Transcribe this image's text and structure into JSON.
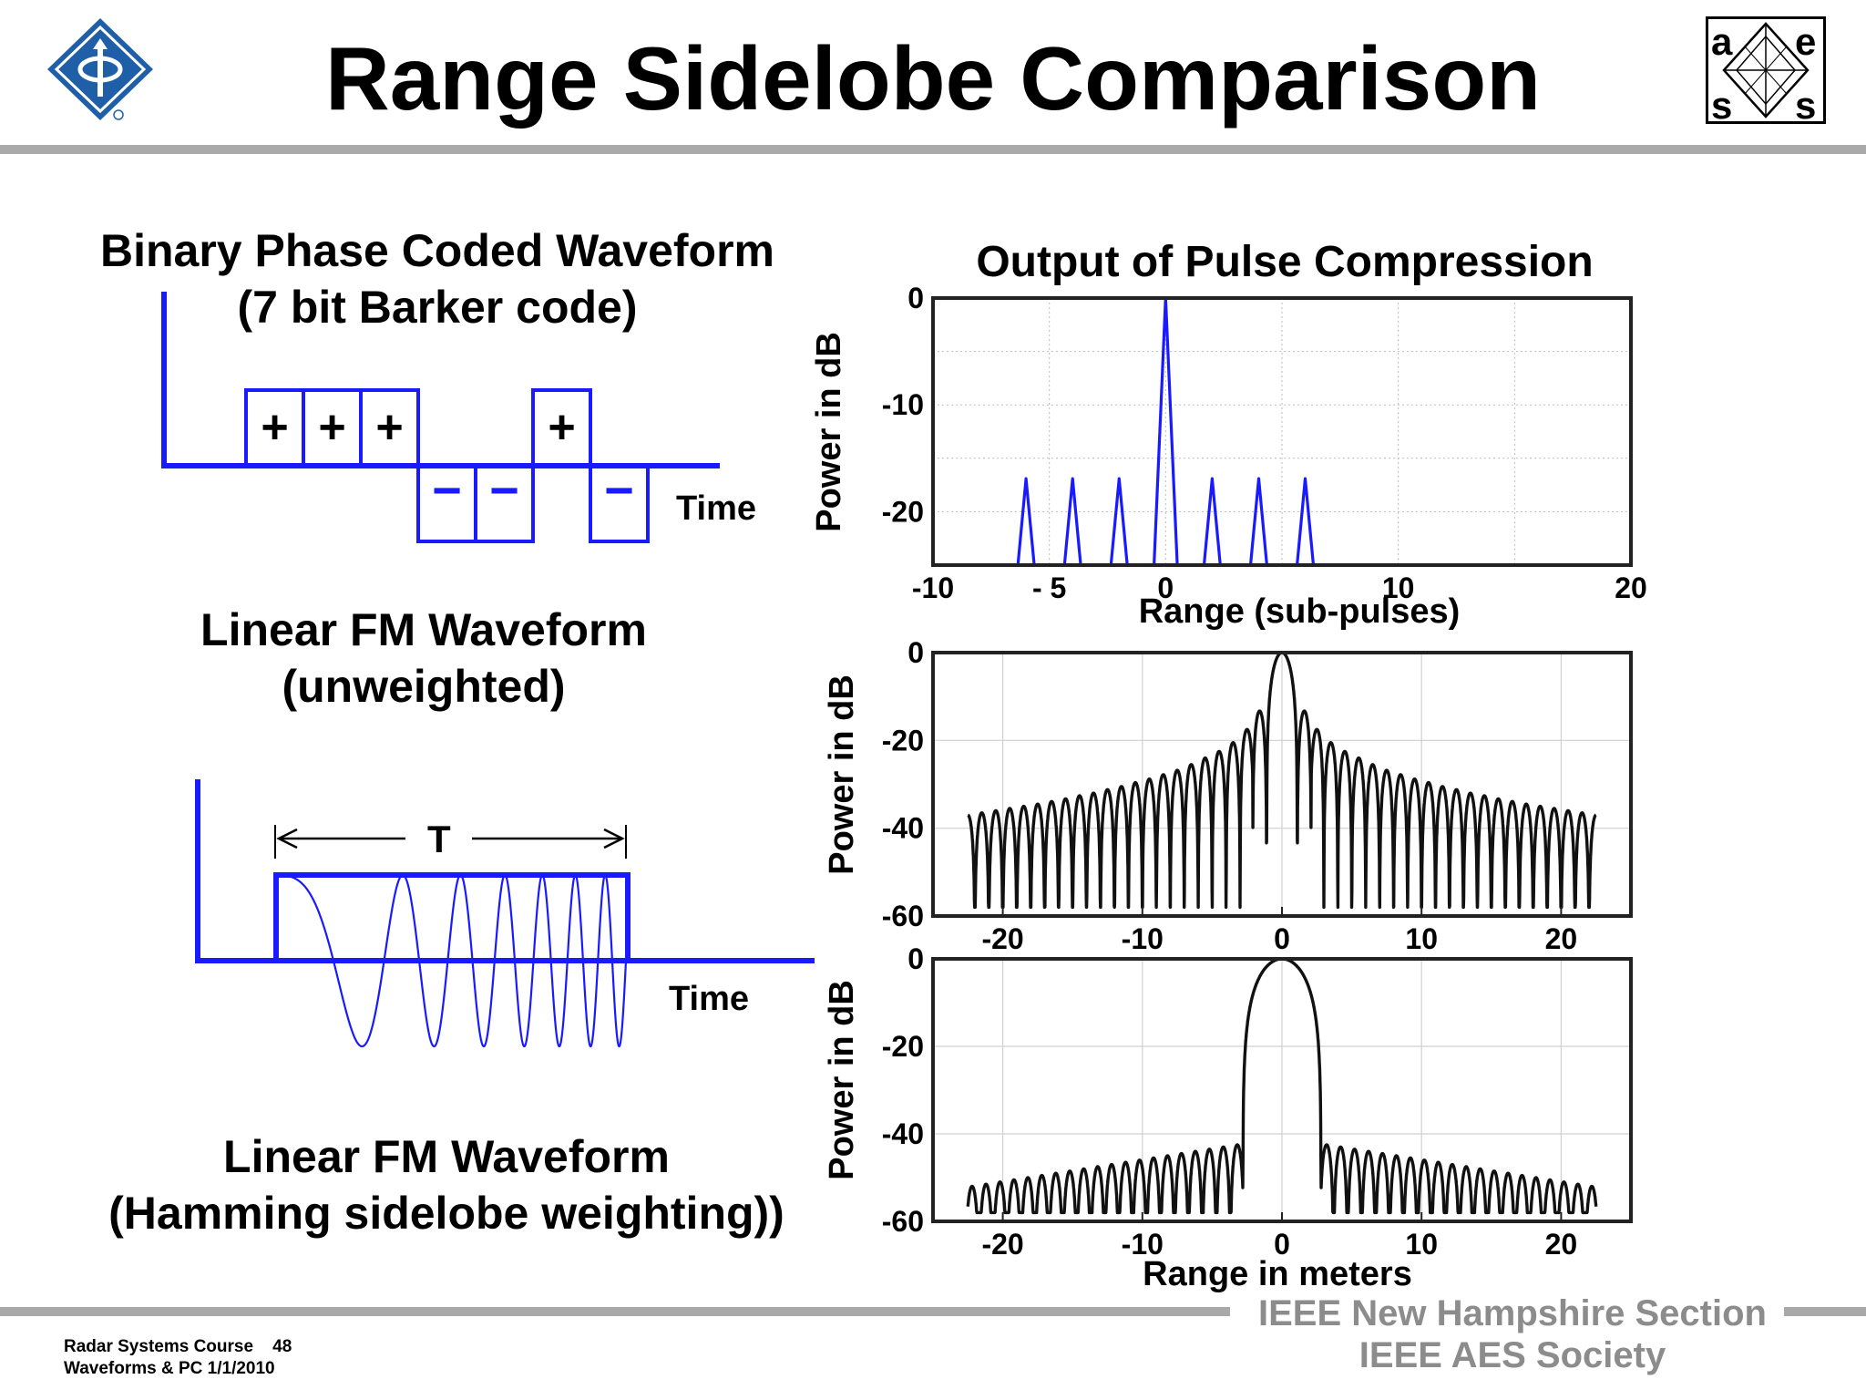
{
  "slide": {
    "title": "Range Sidelobe Comparison"
  },
  "left": {
    "barker": {
      "title_line1": "Binary Phase Coded Waveform",
      "title_line2": "(7 bit Barker  code)",
      "bits": [
        "+",
        "+",
        "+",
        "−",
        "−",
        "+",
        "−"
      ],
      "time_label": "Time"
    },
    "lfm_unweighted": {
      "title_line1": "Linear FM Waveform",
      "title_line2": "(unweighted)"
    },
    "lfm_diagram": {
      "duration_label": "T",
      "time_label": "Time"
    },
    "lfm_hamming": {
      "title_line1": "Linear FM Waveform",
      "title_line2": "(Hamming sidelobe weighting))"
    }
  },
  "right": {
    "title": "Output of Pulse Compression"
  },
  "footer": {
    "course": "Radar Systems Course",
    "page": "48",
    "subtitle": "Waveforms & PC  1/1/2010",
    "org_line1": "IEEE New Hampshire Section",
    "org_line2": "IEEE AES Society"
  },
  "colors": {
    "waveform_blue": "#1a1aff",
    "plot_black": "#111111",
    "rule_gray": "#a9a9a9",
    "footer_gray": "#8c8c8c",
    "logo_blue": "#1f5fa8"
  },
  "chart_data": [
    {
      "type": "line",
      "title": "Output of Pulse Compression",
      "xlabel": "Range (sub-pulses)",
      "ylabel": "Power in dB",
      "xlim": [
        -10,
        20
      ],
      "ylim": [
        -25,
        0
      ],
      "x_ticks": [
        "-10",
        "- 5",
        "0",
        "10",
        "20"
      ],
      "x_tick_values": [
        -10,
        -5,
        0,
        10,
        20
      ],
      "y_ticks": [
        "0",
        "-10",
        "-20"
      ],
      "y_tick_values": [
        0,
        -10,
        -20
      ],
      "grid": true,
      "series": [
        {
          "peaks": [
            {
              "x": -6,
              "y": -16.9
            },
            {
              "x": -4,
              "y": -16.9
            },
            {
              "x": -2,
              "y": -16.9
            },
            {
              "x": 0,
              "y": 0
            },
            {
              "x": 2,
              "y": -16.9
            },
            {
              "x": 4,
              "y": -16.9
            },
            {
              "x": 6,
              "y": -16.9
            }
          ]
        }
      ]
    },
    {
      "type": "line",
      "title": "",
      "xlabel": "",
      "ylabel": "Power in dB",
      "xlim": [
        -25,
        25
      ],
      "ylim": [
        -60,
        0
      ],
      "x_ticks": [
        "-20",
        "-10",
        "0",
        "10",
        "20"
      ],
      "x_tick_values": [
        -20,
        -10,
        0,
        10,
        20
      ],
      "y_ticks": [
        "0",
        "-20",
        "-40",
        "-60"
      ],
      "y_tick_values": [
        0,
        -20,
        -40,
        -60
      ],
      "grid": true,
      "series": [
        {
          "mainlobe_half_width": 1.1,
          "lobe_spacing": 1.0,
          "sidelobe_peaks": [
            {
              "x": 1.6,
              "y": -13.3
            },
            {
              "x": 2.5,
              "y": -17.5
            },
            {
              "x": 3.5,
              "y": -20.5
            },
            {
              "x": 4.5,
              "y": -22.5
            },
            {
              "x": 5.5,
              "y": -24
            },
            {
              "x": 6.5,
              "y": -25.5
            },
            {
              "x": 7.5,
              "y": -26.8
            },
            {
              "x": 8.5,
              "y": -27.8
            },
            {
              "x": 9.5,
              "y": -28.8
            },
            {
              "x": 10.5,
              "y": -29.6
            },
            {
              "x": 11.5,
              "y": -30.5
            },
            {
              "x": 12.5,
              "y": -31.2
            },
            {
              "x": 13.5,
              "y": -32
            },
            {
              "x": 14.5,
              "y": -32.6
            },
            {
              "x": 15.5,
              "y": -33.3
            },
            {
              "x": 16.5,
              "y": -33.9
            },
            {
              "x": 17.5,
              "y": -34.5
            },
            {
              "x": 18.5,
              "y": -35
            },
            {
              "x": 19.5,
              "y": -35.5
            },
            {
              "x": 20.5,
              "y": -36
            },
            {
              "x": 21.5,
              "y": -36.5
            },
            {
              "x": 22.5,
              "y": -37
            }
          ],
          "x_range": [
            -22.5,
            22.5
          ]
        }
      ]
    },
    {
      "type": "line",
      "title": "",
      "xlabel": "Range in meters",
      "ylabel": "Power in dB",
      "xlim": [
        -25,
        25
      ],
      "ylim": [
        -60,
        0
      ],
      "x_ticks": [
        "-20",
        "-10",
        "0",
        "10",
        "20"
      ],
      "x_tick_values": [
        -20,
        -10,
        0,
        10,
        20
      ],
      "y_ticks": [
        "0",
        "-20",
        "-40",
        "-60"
      ],
      "y_tick_values": [
        0,
        -20,
        -40,
        -60
      ],
      "grid": true,
      "series": [
        {
          "mainlobe_half_width": 2.8,
          "lobe_spacing": 1.0,
          "sidelobe_peaks": [
            {
              "x": 3.2,
              "y": -42.5
            },
            {
              "x": 4.2,
              "y": -43
            },
            {
              "x": 5.2,
              "y": -43.5
            },
            {
              "x": 6.2,
              "y": -44
            },
            {
              "x": 7.2,
              "y": -44.5
            },
            {
              "x": 8.2,
              "y": -45
            },
            {
              "x": 9.2,
              "y": -45.5
            },
            {
              "x": 10.2,
              "y": -46
            },
            {
              "x": 11.2,
              "y": -46.5
            },
            {
              "x": 12.2,
              "y": -47
            },
            {
              "x": 13.2,
              "y": -47.5
            },
            {
              "x": 14.2,
              "y": -48
            },
            {
              "x": 15.2,
              "y": -48.5
            },
            {
              "x": 16.2,
              "y": -49
            },
            {
              "x": 17.2,
              "y": -49.5
            },
            {
              "x": 18.2,
              "y": -50
            },
            {
              "x": 19.2,
              "y": -50.5
            },
            {
              "x": 20.2,
              "y": -51
            },
            {
              "x": 21.2,
              "y": -51.5
            },
            {
              "x": 22.2,
              "y": -52
            }
          ],
          "x_range": [
            -22.5,
            22.5
          ]
        }
      ]
    }
  ]
}
